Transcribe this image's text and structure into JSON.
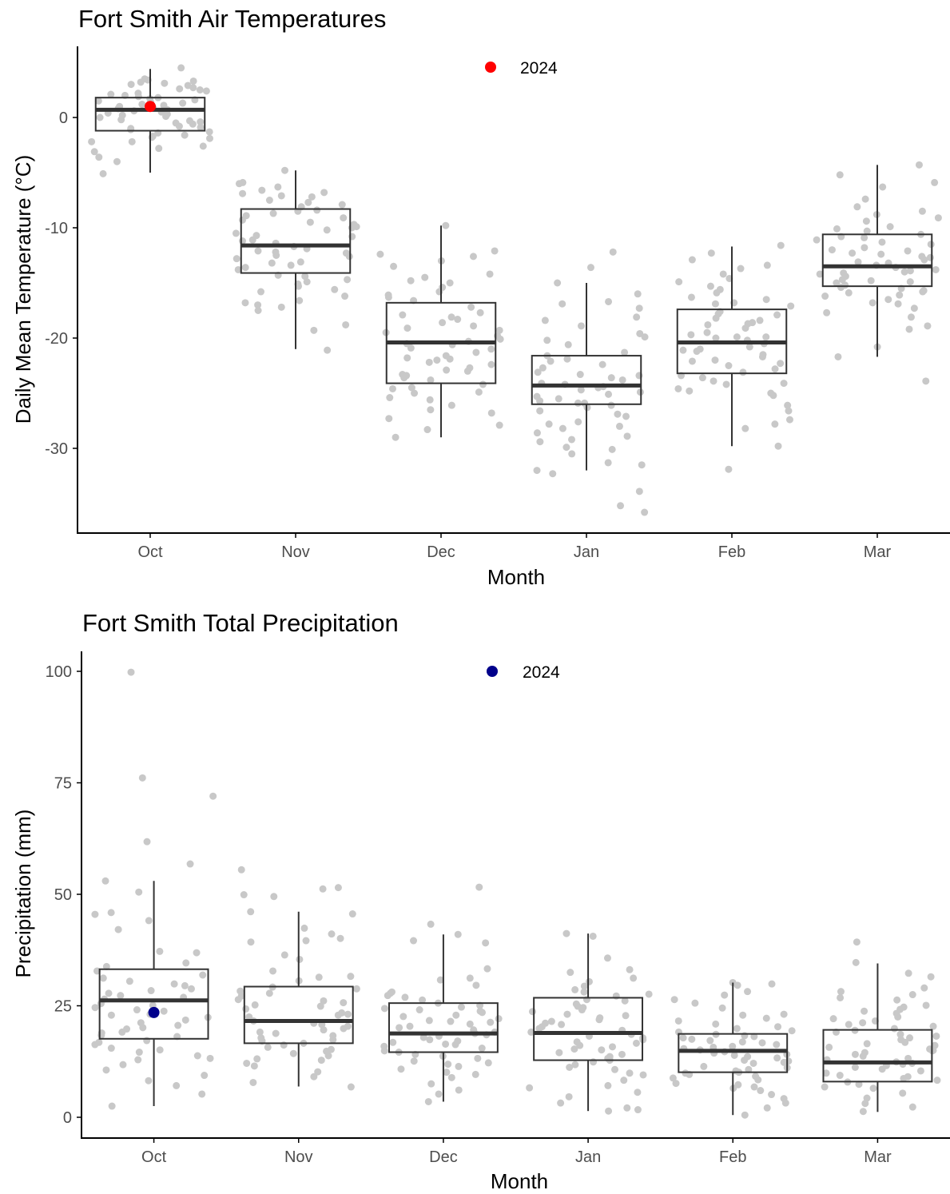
{
  "colors": {
    "jitter_points": "#c8c8c8",
    "box_stroke": "#333333",
    "median": "#333333",
    "temperature_2024": "#ff0000",
    "precipitation_2024": "#00008b",
    "axis": "#000000"
  },
  "chart_data": [
    {
      "type": "box",
      "title": "Fort Smith Air Temperatures",
      "xlabel": "Month",
      "ylabel": "Daily Mean Temperature (°C)",
      "ylim": [
        -37,
        6.5
      ],
      "yticks": [
        0,
        -10,
        -20,
        -30
      ],
      "categories": [
        "Oct",
        "Nov",
        "Dec",
        "Jan",
        "Feb",
        "Mar"
      ],
      "boxes": [
        {
          "month": "Oct",
          "min": -5,
          "q1": -1.2,
          "median": 0.7,
          "q3": 1.8,
          "max": 4.4
        },
        {
          "month": "Nov",
          "min": -21,
          "q1": -14.1,
          "median": -11.6,
          "q3": -8.3,
          "max": -4.8
        },
        {
          "month": "Dec",
          "min": -29,
          "q1": -24.1,
          "median": -20.4,
          "q3": -16.8,
          "max": -9.8
        },
        {
          "month": "Jan",
          "min": -32,
          "q1": -26,
          "median": -24.3,
          "q3": -21.6,
          "max": -15
        },
        {
          "month": "Feb",
          "min": -29.8,
          "q1": -23.2,
          "median": -20.4,
          "q3": -17.4,
          "max": -11.7
        },
        {
          "month": "Mar",
          "min": -21.7,
          "q1": -15.3,
          "median": -13.5,
          "q3": -10.6,
          "max": -4.3
        }
      ],
      "legend": {
        "label": "2024",
        "placement": "top-center"
      },
      "highlight_2024": [
        {
          "month": "Oct",
          "value": 1
        }
      ],
      "jitter_points": [
        {
          "month": "Oct",
          "values": [
            2.6,
            1.8,
            3.5,
            0.2,
            -0.3,
            4.5,
            1.4,
            0.9,
            -1.7,
            -2.2,
            0.5,
            1.1,
            2.2,
            -0.6,
            -1.1,
            3.2,
            0.8,
            -1.9,
            -0.5,
            1.6,
            2.7,
            -3.1,
            0.1,
            -2.6,
            -4,
            1.3,
            0.4,
            -0.9,
            2.1,
            3,
            -1.4,
            0.6,
            1.9,
            -2.8,
            -5.1,
            0.3,
            2.4,
            1,
            -0.2,
            -1.6,
            3.3,
            0.7,
            -3.6,
            1.7,
            2.9,
            -0.8,
            0,
            1.2,
            -1.3,
            2.5,
            3.4,
            -2.2,
            0.9,
            1.5,
            -0.4,
            2,
            -1,
            3.1,
            0.5,
            -1.8
          ]
        },
        {
          "month": "Nov",
          "values": [
            -6,
            -6.3,
            -7.9,
            -17.5,
            -18.8,
            -19.3,
            -21.1,
            -5.9,
            -8.4,
            -12.6,
            -14.4,
            -13.1,
            -7.2,
            -9.5,
            -10.8,
            -12.3,
            -13.8,
            -15.6,
            -16.2,
            -8.7,
            -11.1,
            -9.9,
            -14.9,
            -6.8,
            -7.7,
            -10.2,
            -11.9,
            -13.2,
            -12.1,
            -16.8,
            -17.2,
            -9.1,
            -4.8,
            -7.5,
            -10.5,
            -12.8,
            -8.1,
            -15.1,
            -14.3,
            -11.4,
            -6.9,
            -13.6,
            -10,
            -9.3,
            -15.8,
            -16.6,
            -11.7,
            -12.5,
            -8.9,
            -7.1,
            -14.7,
            -13.4,
            -6.6,
            -10.7,
            -9.7,
            -12.2,
            -17,
            -15.3,
            -11.2,
            -8.5
          ]
        },
        {
          "month": "Dec",
          "values": [
            -15.4,
            -22.4,
            -23,
            -24.6,
            -25,
            -14.2,
            -18.3,
            -26.8,
            -27.3,
            -29,
            -16.1,
            -19.5,
            -20.9,
            -21.6,
            -22.9,
            -23.8,
            -25.6,
            -12.1,
            -13.5,
            -17.7,
            -18.9,
            -20.1,
            -21.3,
            -24.2,
            -26.1,
            -28.3,
            -13,
            -15.8,
            -17.2,
            -19.1,
            -20.6,
            -22.2,
            -23.4,
            -24.9,
            -9.8,
            -12.6,
            -14.8,
            -16.6,
            -18.1,
            -19.8,
            -21,
            -22.7,
            -25.4,
            -27.9,
            -15,
            -17.9,
            -20.3,
            -21.8,
            -23.3,
            -24.5,
            -16.3,
            -18.6,
            -20.5,
            -22,
            -26.5,
            -12.4,
            -14.5,
            -19.3,
            -21.9,
            -23.6
          ]
        },
        {
          "month": "Jan",
          "values": [
            -17.3,
            -12.2,
            -13.6,
            -25.9,
            -28.9,
            -31.3,
            -32,
            -31.5,
            -23.4,
            -24.4,
            -26.6,
            -27.8,
            -29.4,
            -30.1,
            -18.1,
            -19.6,
            -21.9,
            -23.8,
            -24.9,
            -25.7,
            -26.3,
            -27.6,
            -28.6,
            -29.9,
            -30.5,
            -32.3,
            -33.9,
            -35.2,
            -35.8,
            -15,
            -16.7,
            -18.9,
            -20.2,
            -21.3,
            -22.4,
            -23.1,
            -24.1,
            -24.7,
            -25.3,
            -26.1,
            -27.1,
            -28.2,
            -16,
            -16.9,
            -18.4,
            -19.9,
            -21.6,
            -22.7,
            -23.6,
            -24.5,
            -25.1,
            -25.9,
            -26.9,
            -28,
            -29.2,
            -20.6,
            -22.1,
            -23.3,
            -24.2,
            -25.5
          ]
        },
        {
          "month": "Feb",
          "values": [
            -17.8,
            -18.4,
            -19.5,
            -24.6,
            -25,
            -27.4,
            -13.7,
            -15.3,
            -16.5,
            -18.2,
            -19.9,
            -21.1,
            -22.3,
            -23.6,
            -24.8,
            -26.1,
            -27.8,
            -29.8,
            -31.9,
            -14.9,
            -16.9,
            -18.6,
            -19.7,
            -20.8,
            -21.7,
            -22.8,
            -23.9,
            -25.2,
            -26.6,
            -28.2,
            -12.3,
            -13.4,
            -14.6,
            -15.9,
            -17.1,
            -18.7,
            -19.9,
            -20.5,
            -21.5,
            -22.5,
            -23.4,
            -24.1,
            -11.6,
            -12.9,
            -14.2,
            -15.6,
            -16.8,
            -17.9,
            -19.1,
            -20.2,
            -21.2,
            -22.1,
            -23.1,
            -24.2,
            -16.3,
            -17.6,
            -18.8,
            -20,
            -21,
            -22
          ]
        },
        {
          "month": "Mar",
          "values": [
            -4.3,
            -5.2,
            -8.1,
            -12.7,
            -14.1,
            -15.5,
            -16.5,
            -20.8,
            -23.9,
            -10.6,
            -11.3,
            -12.1,
            -13.1,
            -13.9,
            -14.8,
            -15.7,
            -16.8,
            -18.1,
            -19.2,
            -21.7,
            -5.9,
            -8.5,
            -9.9,
            -10.9,
            -11.8,
            -12.6,
            -13.4,
            -14.2,
            -15,
            -15.9,
            -16.9,
            -17.7,
            -18.9,
            -7.4,
            -9.1,
            -10.3,
            -11.1,
            -12,
            -12.9,
            -13.6,
            -14.4,
            -15.2,
            -16.2,
            -17.3,
            -6.3,
            -8.8,
            -10.1,
            -11.5,
            -12.4,
            -13.2,
            -14,
            -14.7,
            -15.4,
            -16.1,
            -9.4,
            -10.8,
            -12.3,
            -13.8,
            -14.9,
            -15.8
          ]
        }
      ]
    },
    {
      "type": "box",
      "title": "Fort Smith Total Precipitation",
      "xlabel": "Month",
      "ylabel": "Precipitation (mm)",
      "ylim": [
        -4,
        103
      ],
      "yticks": [
        0,
        25,
        50,
        75,
        100
      ],
      "categories": [
        "Oct",
        "Nov",
        "Dec",
        "Jan",
        "Feb",
        "Mar"
      ],
      "boxes": [
        {
          "month": "Oct",
          "min": 2.5,
          "q1": 17.6,
          "median": 26.2,
          "q3": 33.2,
          "max": 53
        },
        {
          "month": "Nov",
          "min": 6.9,
          "q1": 16.6,
          "median": 21.6,
          "q3": 29.3,
          "max": 46.1
        },
        {
          "month": "Dec",
          "min": 3.5,
          "q1": 14.6,
          "median": 18.8,
          "q3": 25.6,
          "max": 41
        },
        {
          "month": "Jan",
          "min": 1.4,
          "q1": 12.8,
          "median": 18.9,
          "q3": 26.8,
          "max": 41.2
        },
        {
          "month": "Feb",
          "min": 0.5,
          "q1": 10.1,
          "median": 14.9,
          "q3": 18.7,
          "max": 30.2
        },
        {
          "month": "Mar",
          "min": 1.2,
          "q1": 8,
          "median": 12.3,
          "q3": 19.6,
          "max": 34.5
        }
      ],
      "legend": {
        "label": "2024",
        "placement": "top-center"
      },
      "highlight_2024": [
        {
          "month": "Oct",
          "value": 23.5
        }
      ],
      "jitter_points": [
        {
          "month": "Oct",
          "values": [
            72,
            53,
            61.8,
            56.8,
            76.1,
            99.8,
            45.9,
            50.5,
            44.1,
            45.5,
            42.1,
            37.2,
            36.9,
            34.6,
            32.8,
            31.2,
            29.5,
            28.4,
            27.3,
            26.5,
            25.5,
            24.6,
            23.8,
            22.9,
            21.8,
            20.6,
            19.8,
            18.9,
            18.1,
            17.2,
            16.3,
            15.5,
            14.6,
            13.8,
            12.9,
            11.8,
            10.6,
            9.4,
            8.2,
            7.1,
            5.2,
            2.5,
            30.5,
            28.8,
            26.9,
            24.1,
            21.2,
            19.1,
            16.8,
            15.1,
            13.2,
            27.8,
            25.1,
            22.4,
            20.1,
            18.4,
            33.8,
            31.9,
            29.9,
            23.1
          ]
        },
        {
          "month": "Nov",
          "values": [
            46.1,
            45.6,
            49.5,
            49.9,
            51.2,
            51.5,
            55.5,
            42.4,
            40.1,
            39.6,
            39.3,
            36.4,
            35.4,
            31.6,
            31.4,
            30.6,
            29.2,
            28.3,
            27.2,
            26.1,
            25.2,
            24.3,
            23.4,
            22.5,
            21.6,
            20.8,
            19.9,
            19.1,
            18.3,
            17.4,
            16.6,
            15.7,
            14.8,
            13.8,
            12.8,
            11.5,
            10.2,
            9.1,
            7.8,
            6.8,
            41.1,
            32.8,
            27.8,
            24.9,
            21.1,
            18.8,
            16.2,
            13.1,
            25.7,
            23.1,
            20.4,
            17.8,
            15.2,
            28.8,
            22.9,
            19.6,
            17.1,
            14.3,
            12.1,
            26.4
          ]
        },
        {
          "month": "Dec",
          "values": [
            51.6,
            41,
            43.3,
            39.6,
            39.1,
            33.3,
            30.8,
            28.1,
            27.3,
            26.3,
            25.6,
            24.7,
            23.8,
            22.9,
            22.1,
            21.3,
            20.4,
            19.6,
            18.8,
            17.9,
            17.1,
            16.3,
            15.5,
            14.6,
            13.7,
            12.6,
            11.4,
            10.1,
            8.9,
            7.5,
            6.1,
            5.2,
            3.5,
            31.2,
            26.9,
            24.1,
            21.7,
            19.1,
            16.8,
            14.1,
            11.9,
            9.6,
            25.1,
            22.6,
            20.1,
            18.2,
            15.9,
            13.2,
            27.8,
            23.5,
            20.9,
            18.5,
            16.4,
            12.2,
            29.6,
            24.4,
            21.5,
            17.4,
            14.9,
            10.8
          ]
        },
        {
          "month": "Jan",
          "values": [
            41.2,
            40.6,
            35.7,
            33.1,
            31.2,
            29.4,
            28.1,
            27.2,
            26.4,
            25.4,
            24.6,
            23.7,
            22.8,
            21.9,
            21.1,
            20.3,
            19.5,
            18.6,
            17.8,
            16.9,
            16.1,
            15.3,
            14.5,
            13.6,
            12.8,
            11.8,
            10.7,
            9.5,
            8.3,
            7.1,
            5.6,
            4.6,
            3.2,
            2.1,
            1.4,
            1.7,
            32.5,
            27.6,
            24.9,
            22.3,
            19.9,
            17.4,
            15.1,
            12.4,
            9.9,
            6.6,
            26.1,
            23.1,
            20.8,
            18.2,
            15.8,
            13.2,
            28.6,
            24.1,
            21.5,
            16.6,
            11.2,
            30.4,
            19.1,
            14.1
          ]
        },
        {
          "month": "Feb",
          "values": [
            30.2,
            29.9,
            29.6,
            27.4,
            25.6,
            23.1,
            22.2,
            20.9,
            19.9,
            19.1,
            18.3,
            17.5,
            16.7,
            15.9,
            15.1,
            14.4,
            13.6,
            12.8,
            12.1,
            11.4,
            10.7,
            9.9,
            9.2,
            8.4,
            7.6,
            6.8,
            6,
            5.1,
            4.2,
            3.2,
            2.1,
            0.5,
            26.4,
            21.6,
            18.6,
            16.3,
            13.9,
            11.1,
            8.8,
            6.5,
            24.5,
            20.3,
            17.8,
            15.4,
            12.6,
            10.1,
            7.3,
            19.4,
            16.9,
            14.7,
            12.3,
            9.6,
            22.9,
            18.1,
            15.7,
            13.3,
            10.4,
            28.2,
            17.2,
            14.1
          ]
        },
        {
          "month": "Mar",
          "values": [
            39.3,
            34.7,
            32.3,
            31.5,
            29,
            28.2,
            27.5,
            26.3,
            25.1,
            24.2,
            23.3,
            22.5,
            21.6,
            20.8,
            19.9,
            19.1,
            18.2,
            17.4,
            16.5,
            15.7,
            14.9,
            14.1,
            13.2,
            12.4,
            11.6,
            10.8,
            9.9,
            9.1,
            8.3,
            7.4,
            6.5,
            5.4,
            4.3,
            3.1,
            2.3,
            1.3,
            26.8,
            23.8,
            20.4,
            17.8,
            15.3,
            12.9,
            10.4,
            7.9,
            22.1,
            19.5,
            16.8,
            14.5,
            11.9,
            9.4,
            6.8,
            18.6,
            16.1,
            13.7,
            11.2,
            8.7,
            24.7,
            21.2,
            15,
            12.1
          ]
        }
      ]
    }
  ]
}
